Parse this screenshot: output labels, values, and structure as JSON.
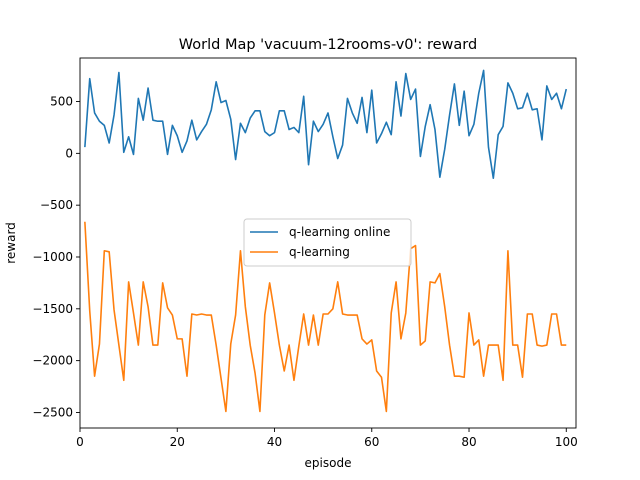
{
  "chart_data": {
    "type": "line",
    "title": "World Map 'vacuum-12rooms-v0': reward",
    "xlabel": "episode",
    "ylabel": "reward",
    "xlim": [
      0,
      102
    ],
    "ylim": [
      -2650,
      920
    ],
    "xticks": [
      0,
      20,
      40,
      60,
      80,
      100
    ],
    "yticks": [
      -2500,
      -2000,
      -1500,
      -1000,
      -500,
      0,
      500
    ],
    "grid": false,
    "legend": "center",
    "series": [
      {
        "name": "q-learning online",
        "color": "#1f77b4",
        "x": [
          1,
          2,
          3,
          4,
          5,
          6,
          7,
          8,
          9,
          10,
          11,
          12,
          13,
          14,
          15,
          16,
          17,
          18,
          19,
          20,
          21,
          22,
          23,
          24,
          25,
          26,
          27,
          28,
          29,
          30,
          31,
          32,
          33,
          34,
          35,
          36,
          37,
          38,
          39,
          40,
          41,
          42,
          43,
          44,
          45,
          46,
          47,
          48,
          49,
          50,
          51,
          52,
          53,
          54,
          55,
          56,
          57,
          58,
          59,
          60,
          61,
          62,
          63,
          64,
          65,
          66,
          67,
          68,
          69,
          70,
          71,
          72,
          73,
          74,
          75,
          76,
          77,
          78,
          79,
          80,
          81,
          82,
          83,
          84,
          85,
          86,
          87,
          88,
          89,
          90,
          91,
          92,
          93,
          94,
          95,
          96,
          97,
          98,
          99,
          100
        ],
        "values": [
          60,
          720,
          390,
          310,
          270,
          100,
          370,
          780,
          10,
          160,
          -10,
          530,
          320,
          630,
          320,
          310,
          310,
          -10,
          270,
          170,
          10,
          120,
          320,
          130,
          210,
          280,
          420,
          690,
          490,
          510,
          330,
          -60,
          290,
          200,
          340,
          410,
          410,
          210,
          170,
          200,
          410,
          410,
          230,
          250,
          200,
          550,
          -110,
          310,
          210,
          280,
          390,
          160,
          -50,
          80,
          530,
          390,
          290,
          540,
          200,
          610,
          100,
          190,
          300,
          180,
          690,
          360,
          770,
          520,
          620,
          -30,
          260,
          470,
          230,
          -230,
          40,
          370,
          670,
          270,
          600,
          170,
          280,
          580,
          800,
          60,
          -240,
          180,
          260,
          680,
          580,
          430,
          440,
          580,
          420,
          430,
          130,
          650,
          520,
          580,
          430,
          620
        ]
      },
      {
        "name": "q-learning",
        "color": "#ff7f0e",
        "x": [
          1,
          2,
          3,
          4,
          5,
          6,
          7,
          8,
          9,
          10,
          11,
          12,
          13,
          14,
          15,
          16,
          17,
          18,
          19,
          20,
          21,
          22,
          23,
          24,
          25,
          26,
          27,
          28,
          29,
          30,
          31,
          32,
          33,
          34,
          35,
          36,
          37,
          38,
          39,
          40,
          41,
          42,
          43,
          44,
          45,
          46,
          47,
          48,
          49,
          50,
          51,
          52,
          53,
          54,
          55,
          56,
          57,
          58,
          59,
          60,
          61,
          62,
          63,
          64,
          65,
          66,
          67,
          68,
          69,
          70,
          71,
          72,
          73,
          74,
          75,
          76,
          77,
          78,
          79,
          80,
          81,
          82,
          83,
          84,
          85,
          86,
          87,
          88,
          89,
          90,
          91,
          92,
          93,
          94,
          95,
          96,
          97,
          98,
          99,
          100
        ],
        "values": [
          -660,
          -1520,
          -2150,
          -1840,
          -940,
          -950,
          -1510,
          -1850,
          -2190,
          -1240,
          -1540,
          -1850,
          -1240,
          -1480,
          -1850,
          -1850,
          -1250,
          -1490,
          -1560,
          -1790,
          -1790,
          -2150,
          -1550,
          -1560,
          -1550,
          -1560,
          -1560,
          -1850,
          -2170,
          -2490,
          -1840,
          -1560,
          -940,
          -1480,
          -1850,
          -2120,
          -2490,
          -1560,
          -1250,
          -1540,
          -1850,
          -2100,
          -1850,
          -2190,
          -1860,
          -1550,
          -1850,
          -1560,
          -1850,
          -1550,
          -1550,
          -1500,
          -1240,
          -1550,
          -1560,
          -1560,
          -1560,
          -1790,
          -1840,
          -1800,
          -2100,
          -2160,
          -2490,
          -1540,
          -1240,
          -1790,
          -1540,
          -920,
          -890,
          -1850,
          -1810,
          -1240,
          -1250,
          -1160,
          -1480,
          -1850,
          -2150,
          -2150,
          -2160,
          -1540,
          -1850,
          -1800,
          -2150,
          -1850,
          -1850,
          -1850,
          -2190,
          -940,
          -1850,
          -1850,
          -2160,
          -1550,
          -1550,
          -1850,
          -1860,
          -1850,
          -1550,
          -1550,
          -1850,
          -1850
        ]
      }
    ]
  }
}
